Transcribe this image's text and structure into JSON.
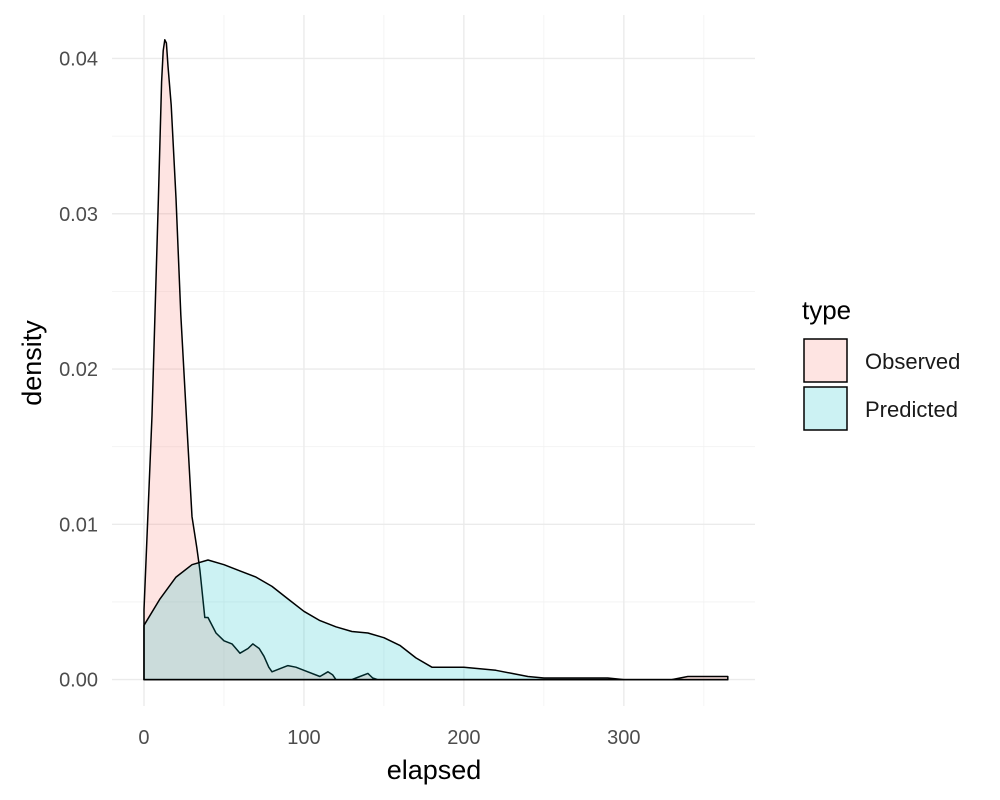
{
  "chart_data": {
    "type": "area",
    "title": "",
    "xlabel": "elapsed",
    "ylabel": "density",
    "xlim": [
      -20,
      382
    ],
    "ylim": [
      -0.0017,
      0.0428
    ],
    "x_ticks": [
      0,
      100,
      200,
      300
    ],
    "x_tick_labels": [
      "0",
      "100",
      "200",
      "300"
    ],
    "y_ticks": [
      0.0,
      0.01,
      0.02,
      0.03,
      0.04
    ],
    "y_tick_labels": [
      "0.00",
      "0.01",
      "0.02",
      "0.03",
      "0.04"
    ],
    "grid": true,
    "legend": {
      "title": "type",
      "position": "right"
    },
    "series": [
      {
        "name": "Observed",
        "color": "#f8766d",
        "x": [
          0,
          5,
          9,
          11,
          12,
          13,
          14,
          15,
          17,
          20,
          23,
          27,
          30,
          33,
          35,
          38,
          40,
          45,
          50,
          55,
          60,
          65,
          68,
          72,
          75,
          78,
          80,
          85,
          90,
          95,
          100,
          110,
          115,
          118,
          120,
          125,
          130,
          135,
          140,
          143,
          146,
          150,
          160,
          170,
          180,
          190,
          200,
          210,
          220,
          230,
          240,
          250,
          260,
          270,
          280,
          290,
          300,
          310,
          320,
          330,
          340,
          350,
          365
        ],
        "values": [
          0.0045,
          0.017,
          0.031,
          0.0385,
          0.0405,
          0.0412,
          0.041,
          0.0395,
          0.037,
          0.031,
          0.0235,
          0.016,
          0.0105,
          0.0085,
          0.007,
          0.004,
          0.004,
          0.003,
          0.0025,
          0.0023,
          0.0017,
          0.002,
          0.0023,
          0.002,
          0.0015,
          0.0008,
          0.0005,
          0.0007,
          0.0009,
          0.0008,
          0.0006,
          0.0002,
          0.0005,
          0.0003,
          0.0,
          0.0,
          0.0,
          0.0002,
          0.0004,
          0.0001,
          0.0,
          0.0,
          0.0,
          0.0,
          0.0,
          0.0,
          0.0,
          0.0,
          0.0,
          0.0,
          0.0,
          0.0,
          0.0,
          0.0,
          0.0,
          0.0,
          0.0,
          0.0,
          0.0,
          0.0,
          0.0002,
          0.0002,
          0.0002
        ]
      },
      {
        "name": "Predicted",
        "color": "#00bfc4",
        "x": [
          0,
          10,
          20,
          30,
          40,
          50,
          60,
          70,
          80,
          90,
          100,
          110,
          120,
          130,
          140,
          150,
          160,
          170,
          180,
          190,
          200,
          210,
          220,
          230,
          240,
          250,
          260,
          270,
          280,
          290,
          300,
          310,
          320,
          330,
          340,
          350,
          365
        ],
        "values": [
          0.0035,
          0.0052,
          0.0066,
          0.0074,
          0.0077,
          0.0074,
          0.007,
          0.0066,
          0.006,
          0.0052,
          0.0044,
          0.0038,
          0.0034,
          0.0031,
          0.003,
          0.0027,
          0.0022,
          0.0014,
          0.0008,
          0.0008,
          0.0008,
          0.0007,
          0.0006,
          0.0004,
          0.0002,
          0.0001,
          0.0001,
          0.0001,
          0.0001,
          0.0001,
          0.0,
          0.0,
          0.0,
          0.0,
          0.0,
          0.0,
          0.0
        ]
      }
    ]
  }
}
